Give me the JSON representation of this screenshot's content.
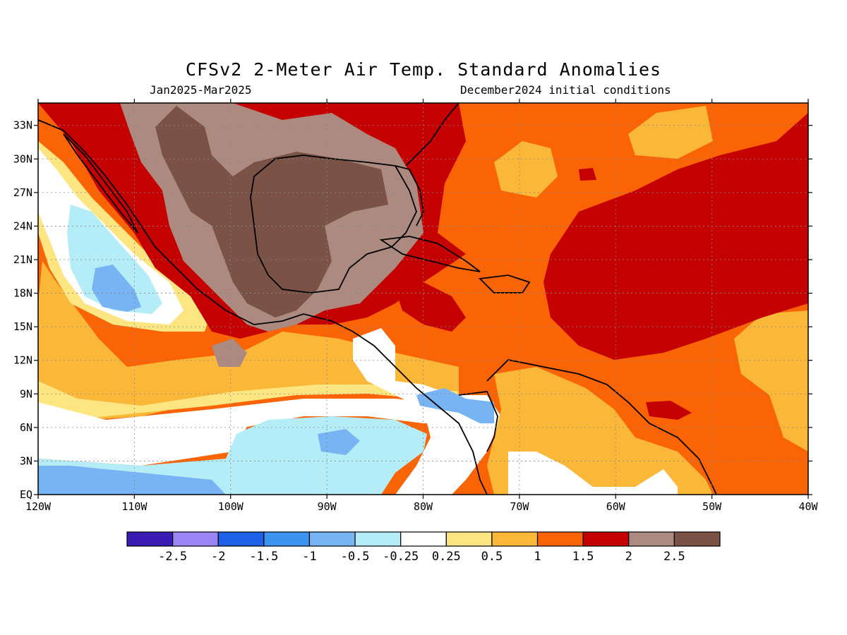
{
  "title": "CFSv2 2-Meter Air Temp. Standard Anomalies",
  "period": "Jan2025-Mar2025",
  "init": "December2024 initial conditions",
  "lat_labels": [
    "33N",
    "30N",
    "27N",
    "24N",
    "21N",
    "18N",
    "15N",
    "12N",
    "9N",
    "6N",
    "3N",
    "EQ"
  ],
  "lon_labels": [
    "120W",
    "110W",
    "100W",
    "90W",
    "80W",
    "70W",
    "60W",
    "50W",
    "40W"
  ],
  "colorbar": {
    "labels": [
      "-2.5",
      "-2",
      "-1.5",
      "-1",
      "-0.5",
      "-0.25",
      "0.25",
      "0.5",
      "1",
      "1.5",
      "2",
      "2.5"
    ],
    "colors": [
      "#3a1cb4",
      "#9b84f4",
      "#1e60e6",
      "#3c94f0",
      "#78b4f4",
      "#b4ecf8",
      "#ffffff",
      "#fde682",
      "#fbb838",
      "#fb6404",
      "#c40000",
      "#ac8a80",
      "#7a5246"
    ]
  },
  "map_extent": {
    "lon": [
      -120,
      -40
    ],
    "lat": [
      0,
      35
    ]
  }
}
